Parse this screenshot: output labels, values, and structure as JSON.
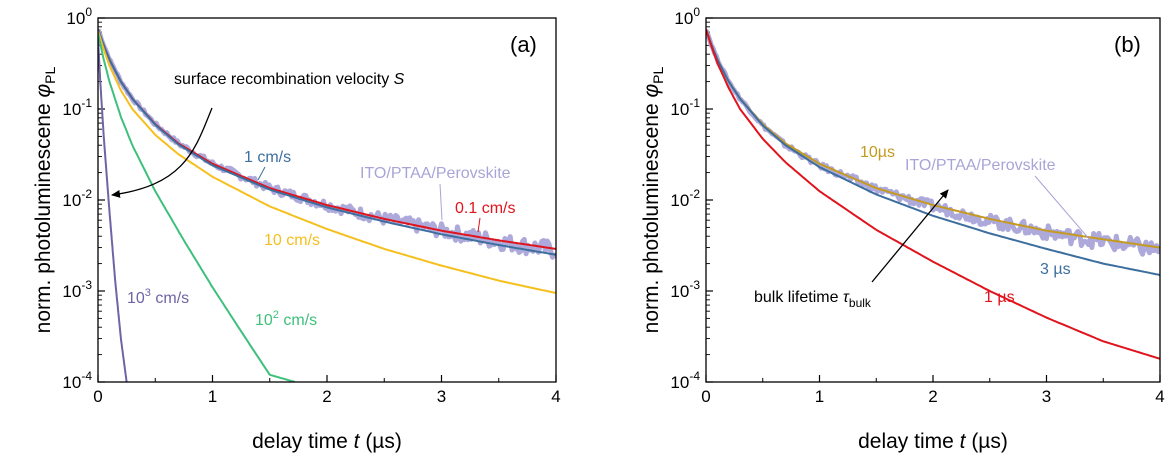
{
  "chart_data": [
    {
      "type": "line",
      "panel_label": "(a)",
      "xlabel_pre": "delay time ",
      "xlabel_var": "t",
      "xlabel_post": " (µs)",
      "ylabel_pre": "norm. photoluminescene ",
      "ylabel_var": "φ",
      "ylabel_sub": "PL",
      "xlim": [
        0,
        4
      ],
      "ylim": [
        0.0001,
        1
      ],
      "yscale": "log",
      "x_ticks": [
        0,
        1,
        2,
        3,
        4
      ],
      "x_tick_labels": [
        "0",
        "1",
        "2",
        "3",
        "4"
      ],
      "y_ticks": [
        1,
        0.1,
        0.01,
        0.001,
        0.0001
      ],
      "y_tick_bases": [
        "10",
        "10",
        "10",
        "10",
        "10"
      ],
      "y_tick_exps": [
        "0",
        "-1",
        "-2",
        "-3",
        "-4"
      ],
      "measurement": {
        "name": "ITO/PTAA/Perovskite",
        "color": "#a9a4d8",
        "x": [
          0,
          0.05,
          0.1,
          0.2,
          0.3,
          0.5,
          0.7,
          1.0,
          1.5,
          2.0,
          2.5,
          3.0,
          3.5,
          4.0
        ],
        "y": [
          0.75,
          0.5,
          0.35,
          0.2,
          0.13,
          0.068,
          0.042,
          0.025,
          0.0135,
          0.0088,
          0.0062,
          0.0046,
          0.0035,
          0.0028
        ]
      },
      "series": [
        {
          "name": "0.1 cm/s",
          "color": "#e0141c",
          "x": [
            0,
            0.05,
            0.1,
            0.2,
            0.3,
            0.5,
            0.7,
            1.0,
            1.5,
            2.0,
            2.5,
            3.0,
            3.5,
            4.0
          ],
          "y": [
            0.75,
            0.5,
            0.35,
            0.2,
            0.13,
            0.068,
            0.042,
            0.025,
            0.0135,
            0.0088,
            0.0062,
            0.0046,
            0.0036,
            0.0029
          ]
        },
        {
          "name": "1 cm/s",
          "color": "#3c6e9e",
          "x": [
            0,
            0.05,
            0.1,
            0.2,
            0.3,
            0.5,
            0.7,
            1.0,
            1.5,
            2.0,
            2.5,
            3.0,
            3.5,
            4.0
          ],
          "y": [
            0.75,
            0.5,
            0.35,
            0.2,
            0.13,
            0.067,
            0.041,
            0.024,
            0.013,
            0.0083,
            0.0058,
            0.0042,
            0.0032,
            0.0025
          ]
        },
        {
          "name": "10 cm/s",
          "color": "#f5c01e",
          "x": [
            0,
            0.05,
            0.1,
            0.2,
            0.3,
            0.5,
            0.7,
            1.0,
            1.5,
            2.0,
            2.5,
            3.0,
            3.5,
            4.0
          ],
          "y": [
            0.72,
            0.45,
            0.3,
            0.16,
            0.1,
            0.052,
            0.032,
            0.018,
            0.0085,
            0.0048,
            0.0029,
            0.0019,
            0.0013,
            0.00095
          ]
        },
        {
          "name": "10² cm/s",
          "color": "#3ec07c",
          "x": [
            0,
            0.05,
            0.1,
            0.2,
            0.3,
            0.5,
            0.75,
            1.0,
            1.25,
            1.5,
            1.72
          ],
          "y": [
            0.68,
            0.35,
            0.2,
            0.082,
            0.04,
            0.0125,
            0.0036,
            0.0011,
            0.00036,
            0.00012,
            0.0001
          ]
        },
        {
          "name": "10³ cm/s",
          "color": "#6e64a6",
          "x": [
            0,
            0.02,
            0.05,
            0.1,
            0.15,
            0.2,
            0.25
          ],
          "y": [
            0.6,
            0.2,
            0.05,
            0.0075,
            0.0013,
            0.0003,
            0.0001
          ]
        }
      ],
      "annotations": {
        "s_label_pre": "surface recombination velocity ",
        "s_label_var": "S",
        "lbl_1": "1 cm/s",
        "lbl_01": "0.1 cm/s",
        "lbl_10": "10 cm/s",
        "lbl_100_base": "10",
        "lbl_100_exp": "2",
        "lbl_100_unit": " cm/s",
        "lbl_1000_base": "10",
        "lbl_1000_exp": "3",
        "lbl_1000_unit": " cm/s",
        "meas_label": "ITO/PTAA/Perovskite"
      }
    },
    {
      "type": "line",
      "panel_label": "(b)",
      "xlabel_pre": "delay time ",
      "xlabel_var": "t",
      "xlabel_post": " (µs)",
      "ylabel_pre": "norm. photoluminescene ",
      "ylabel_var": "φ",
      "ylabel_sub": "PL",
      "xlim": [
        0,
        4
      ],
      "ylim": [
        0.0001,
        1
      ],
      "yscale": "log",
      "x_ticks": [
        0,
        1,
        2,
        3,
        4
      ],
      "x_tick_labels": [
        "0",
        "1",
        "2",
        "3",
        "4"
      ],
      "y_ticks": [
        1,
        0.1,
        0.01,
        0.001,
        0.0001
      ],
      "y_tick_bases": [
        "10",
        "10",
        "10",
        "10",
        "10"
      ],
      "y_tick_exps": [
        "0",
        "-1",
        "-2",
        "-3",
        "-4"
      ],
      "measurement": {
        "name": "ITO/PTAA/Perovskite",
        "color": "#a9a4d8",
        "x": [
          0,
          0.05,
          0.1,
          0.2,
          0.3,
          0.5,
          0.7,
          1.0,
          1.5,
          2.0,
          2.5,
          3.0,
          3.5,
          4.0
        ],
        "y": [
          0.75,
          0.5,
          0.35,
          0.2,
          0.13,
          0.066,
          0.04,
          0.024,
          0.0132,
          0.0085,
          0.0059,
          0.0044,
          0.0035,
          0.0028
        ]
      },
      "series": [
        {
          "name": "10µs",
          "color": "#c49a20",
          "x": [
            0,
            0.05,
            0.1,
            0.2,
            0.3,
            0.5,
            0.7,
            1.0,
            1.5,
            2.0,
            2.5,
            3.0,
            3.5,
            4.0
          ],
          "y": [
            0.75,
            0.5,
            0.35,
            0.2,
            0.13,
            0.068,
            0.042,
            0.025,
            0.0135,
            0.0088,
            0.0062,
            0.0046,
            0.0037,
            0.003
          ]
        },
        {
          "name": "3 µs",
          "color": "#3c6e9e",
          "x": [
            0,
            0.05,
            0.1,
            0.2,
            0.3,
            0.5,
            0.7,
            1.0,
            1.5,
            2.0,
            2.5,
            3.0,
            3.5,
            4.0
          ],
          "y": [
            0.75,
            0.5,
            0.35,
            0.2,
            0.13,
            0.066,
            0.04,
            0.023,
            0.0115,
            0.0067,
            0.0043,
            0.0029,
            0.002,
            0.0015
          ]
        },
        {
          "name": "1 µs",
          "color": "#e0141c",
          "x": [
            0,
            0.05,
            0.1,
            0.2,
            0.3,
            0.5,
            0.7,
            1.0,
            1.5,
            2.0,
            2.5,
            3.0,
            3.5,
            4.0
          ],
          "y": [
            0.75,
            0.48,
            0.32,
            0.17,
            0.1,
            0.047,
            0.026,
            0.0125,
            0.0047,
            0.0021,
            0.001,
            0.00051,
            0.00028,
            0.00018
          ]
        }
      ],
      "annotations": {
        "lbl_10": "10µs",
        "lbl_3": "3 µs",
        "lbl_1": "1 µs",
        "meas_label": "ITO/PTAA/Perovskite",
        "tau_label_pre": "bulk lifetime ",
        "tau_var": "τ",
        "tau_sub": "bulk"
      }
    }
  ]
}
